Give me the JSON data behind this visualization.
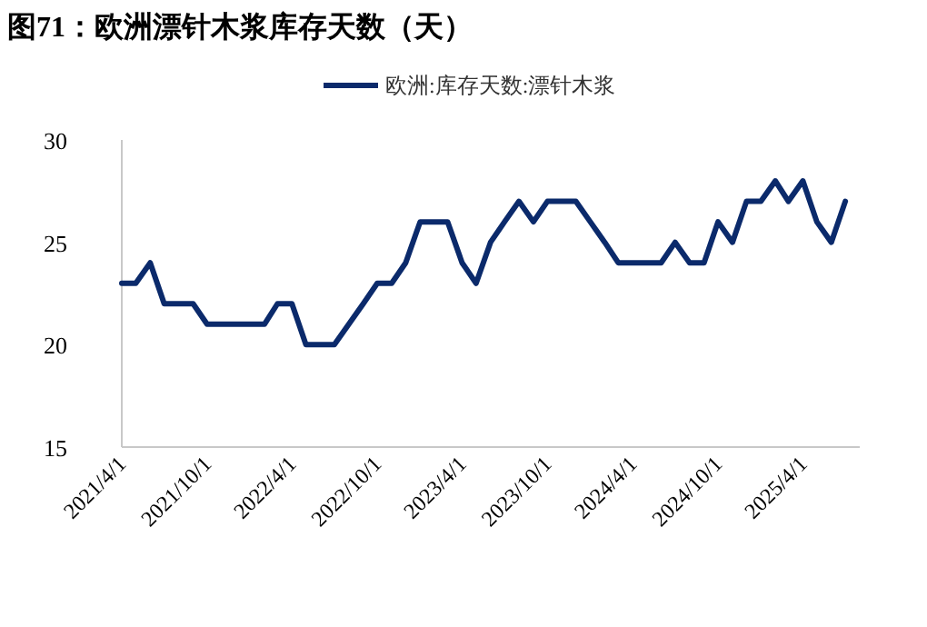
{
  "chart_data": {
    "type": "line",
    "title": "图71：欧洲漂针木浆库存天数（天）",
    "x": [
      "2021-04",
      "2021-05",
      "2021-06",
      "2021-07",
      "2021-08",
      "2021-09",
      "2021-10",
      "2021-11",
      "2021-12",
      "2022-01",
      "2022-02",
      "2022-03",
      "2022-04",
      "2022-05",
      "2022-06",
      "2022-07",
      "2022-08",
      "2022-09",
      "2022-10",
      "2022-11",
      "2022-12",
      "2023-01",
      "2023-02",
      "2023-03",
      "2023-04",
      "2023-05",
      "2023-06",
      "2023-07",
      "2023-08",
      "2023-09",
      "2023-10",
      "2023-11",
      "2023-12",
      "2024-01",
      "2024-02",
      "2024-03",
      "2024-04",
      "2024-05",
      "2024-06",
      "2024-07",
      "2024-08",
      "2024-09",
      "2024-10",
      "2024-11",
      "2024-12",
      "2025-01",
      "2025-02",
      "2025-03",
      "2025-04",
      "2025-05",
      "2025-06",
      "2025-07"
    ],
    "series": [
      {
        "name": "欧洲:库存天数:漂针木浆",
        "color": "#0b2a6b",
        "values": [
          23,
          23,
          24,
          22,
          22,
          22,
          21,
          21,
          21,
          21,
          21,
          22,
          22,
          20,
          20,
          20,
          21,
          22,
          23,
          23,
          24,
          26,
          26,
          26,
          24,
          23,
          25,
          26,
          27,
          26,
          27,
          27,
          27,
          26,
          25,
          24,
          24,
          24,
          24,
          25,
          24,
          24,
          26,
          25,
          27,
          27,
          28,
          27,
          28,
          26,
          25,
          27
        ]
      }
    ],
    "xlim": [
      "2021-04",
      "2025-08"
    ],
    "xticks": [
      {
        "value": "2021-04",
        "label": "2021/4/1"
      },
      {
        "value": "2021-10",
        "label": "2021/10/1"
      },
      {
        "value": "2022-04",
        "label": "2022/4/1"
      },
      {
        "value": "2022-10",
        "label": "2022/10/1"
      },
      {
        "value": "2023-04",
        "label": "2023/4/1"
      },
      {
        "value": "2023-10",
        "label": "2023/10/1"
      },
      {
        "value": "2024-04",
        "label": "2024/4/1"
      },
      {
        "value": "2024-10",
        "label": "2024/10/1"
      },
      {
        "value": "2025-04",
        "label": "2025/4/1"
      }
    ],
    "ylim": [
      15,
      30
    ],
    "yticks": [
      15,
      20,
      25,
      30
    ],
    "legend": "top"
  }
}
